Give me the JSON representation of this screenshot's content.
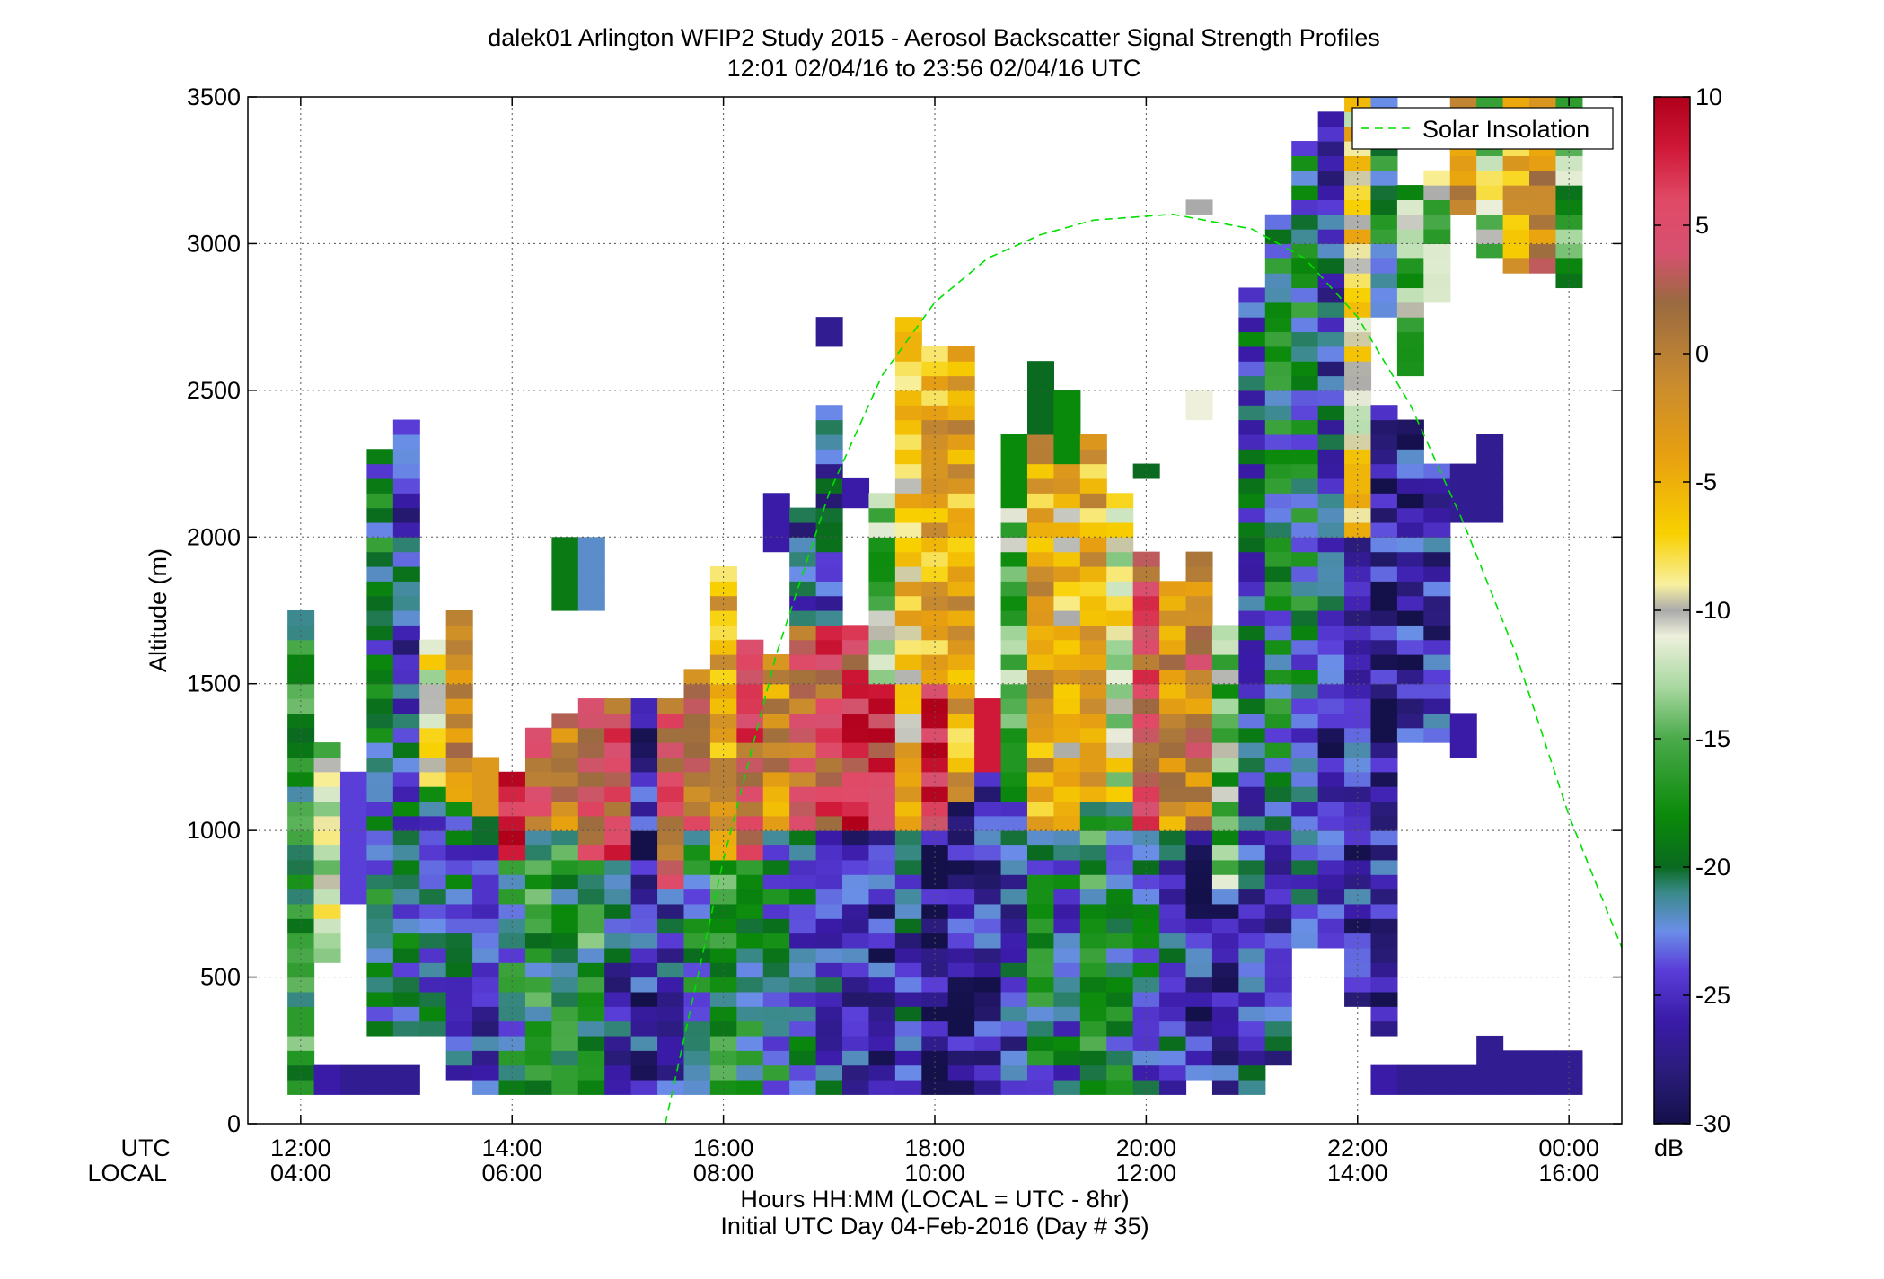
{
  "chart_data": {
    "type": "heatmap",
    "title": "dalek01 Arlington WFIP2 Study 2015 - Aerosol Backscatter Signal Strength Profiles",
    "subtitle": "12:01 02/04/16 to 23:56 02/04/16  UTC",
    "xlabel": "Hours HH:MM  (LOCAL = UTC - 8hr)",
    "xlabel2": "Initial UTC Day 04-Feb-2016 (Day # 35)",
    "ylabel": "Altitude (m)",
    "x_row_labels": [
      "UTC",
      "LOCAL"
    ],
    "xlim_hours_utc": [
      11.5,
      24.5
    ],
    "ylim": [
      0,
      3500
    ],
    "xticks": [
      {
        "value": 12,
        "utc": "12:00",
        "local": "04:00"
      },
      {
        "value": 14,
        "utc": "14:00",
        "local": "06:00"
      },
      {
        "value": 16,
        "utc": "16:00",
        "local": "08:00"
      },
      {
        "value": 18,
        "utc": "18:00",
        "local": "10:00"
      },
      {
        "value": 20,
        "utc": "20:00",
        "local": "12:00"
      },
      {
        "value": 22,
        "utc": "22:00",
        "local": "14:00"
      },
      {
        "value": 24,
        "utc": "00:00",
        "local": "16:00"
      }
    ],
    "yticks": [
      0,
      500,
      1000,
      1500,
      2000,
      2500,
      3000,
      3500
    ],
    "grid": true,
    "legend": {
      "position": "top-right",
      "entries": [
        {
          "name": "Solar Insolation",
          "style": "dashed",
          "color": "#00e000"
        }
      ]
    },
    "colorbar": {
      "unit": "dB",
      "range": [
        -30,
        10
      ],
      "ticks": [
        10,
        5,
        0,
        -5,
        -10,
        -15,
        -20,
        -25,
        -30
      ],
      "stops": [
        {
          "v": -30,
          "c": "#14104a"
        },
        {
          "v": -28,
          "c": "#2a1c7a"
        },
        {
          "v": -26,
          "c": "#3a1ba8"
        },
        {
          "v": -24,
          "c": "#5a3ed8"
        },
        {
          "v": -22.5,
          "c": "#6a8ee8"
        },
        {
          "v": -21,
          "c": "#3a8a8a"
        },
        {
          "v": -20,
          "c": "#0a6a20"
        },
        {
          "v": -18,
          "c": "#0a8a0a"
        },
        {
          "v": -15,
          "c": "#4aaa4a"
        },
        {
          "v": -13,
          "c": "#a8d8a0"
        },
        {
          "v": -11,
          "c": "#eef0dc"
        },
        {
          "v": -10,
          "c": "#aaaaaa"
        },
        {
          "v": -9,
          "c": "#f8f0a0"
        },
        {
          "v": -7,
          "c": "#f8d000"
        },
        {
          "v": -4,
          "c": "#e8a010"
        },
        {
          "v": -1,
          "c": "#c88a30"
        },
        {
          "v": 2,
          "c": "#9a6a40"
        },
        {
          "v": 4,
          "c": "#d85070"
        },
        {
          "v": 6,
          "c": "#e04a66"
        },
        {
          "v": 8,
          "c": "#d01838"
        },
        {
          "v": 10,
          "c": "#b0001a"
        }
      ]
    },
    "bin_minutes": 15,
    "bin_altitude_m": 50,
    "solar_insolation": {
      "peak_time_utc": 20.25,
      "peak_altitude_m": 3100,
      "points": [
        [
          15.45,
          0
        ],
        [
          16.0,
          900
        ],
        [
          16.5,
          1600
        ],
        [
          17.0,
          2150
        ],
        [
          17.5,
          2550
        ],
        [
          18.0,
          2800
        ],
        [
          18.5,
          2950
        ],
        [
          19.0,
          3030
        ],
        [
          19.5,
          3080
        ],
        [
          20.25,
          3100
        ],
        [
          21.0,
          3050
        ],
        [
          21.5,
          2950
        ],
        [
          22.0,
          2750
        ],
        [
          22.5,
          2450
        ],
        [
          23.0,
          2050
        ],
        [
          23.5,
          1600
        ],
        [
          24.0,
          1050
        ],
        [
          24.5,
          600
        ]
      ]
    },
    "profiles": [
      {
        "t": 12.0,
        "segs": [
          [
            100,
            1750,
            -18,
            "v"
          ]
        ]
      },
      {
        "t": 12.25,
        "segs": [
          [
            100,
            200,
            -26
          ],
          [
            550,
            1300,
            -12,
            "v"
          ]
        ]
      },
      {
        "t": 12.5,
        "segs": [
          [
            750,
            1200,
            -24
          ],
          [
            100,
            200,
            -27
          ]
        ]
      },
      {
        "t": 12.75,
        "segs": [
          [
            100,
            200,
            -27
          ],
          [
            300,
            2300,
            -20,
            "v"
          ]
        ]
      },
      {
        "t": 13.0,
        "segs": [
          [
            100,
            200,
            -27
          ],
          [
            300,
            1350,
            -22,
            "v"
          ],
          [
            1350,
            2400,
            -24,
            "v"
          ]
        ]
      },
      {
        "t": 13.25,
        "segs": [
          [
            300,
            1150,
            -22,
            "v"
          ],
          [
            1150,
            1650,
            -10,
            "v"
          ]
        ]
      },
      {
        "t": 13.5,
        "segs": [
          [
            150,
            1100,
            -22,
            "v"
          ],
          [
            1100,
            1750,
            -2,
            "v"
          ]
        ]
      },
      {
        "t": 13.75,
        "segs": [
          [
            100,
            1050,
            -24,
            "v"
          ],
          [
            1050,
            1250,
            -3
          ]
        ]
      },
      {
        "t": 14.0,
        "segs": [
          [
            100,
            900,
            -20,
            "v"
          ],
          [
            900,
            1200,
            6,
            "v"
          ]
        ]
      },
      {
        "t": 14.25,
        "segs": [
          [
            100,
            1000,
            -18,
            "v"
          ],
          [
            1000,
            1350,
            2,
            "v"
          ]
        ]
      },
      {
        "t": 14.5,
        "segs": [
          [
            100,
            1000,
            -18,
            "v"
          ],
          [
            1000,
            1400,
            0,
            "v"
          ],
          [
            1750,
            2000,
            -19
          ]
        ]
      },
      {
        "t": 14.75,
        "segs": [
          [
            100,
            900,
            -18,
            "v"
          ],
          [
            900,
            1450,
            2,
            "v"
          ],
          [
            1750,
            2000,
            -22
          ]
        ]
      },
      {
        "t": 15.0,
        "segs": [
          [
            100,
            900,
            -24,
            "v"
          ],
          [
            900,
            1450,
            4,
            "v"
          ]
        ]
      },
      {
        "t": 15.25,
        "segs": [
          [
            100,
            1450,
            -26,
            "v"
          ]
        ]
      },
      {
        "t": 15.5,
        "segs": [
          [
            100,
            800,
            -24,
            "v"
          ],
          [
            800,
            1450,
            4,
            "v"
          ]
        ]
      },
      {
        "t": 15.75,
        "segs": [
          [
            100,
            1000,
            -20,
            "v"
          ],
          [
            1000,
            1550,
            2,
            "v"
          ]
        ]
      },
      {
        "t": 16.0,
        "segs": [
          [
            100,
            900,
            -18,
            "v"
          ],
          [
            900,
            1900,
            -4,
            "v"
          ]
        ]
      },
      {
        "t": 16.25,
        "segs": [
          [
            100,
            900,
            -20,
            "v"
          ],
          [
            900,
            1650,
            4,
            "v"
          ]
        ]
      },
      {
        "t": 16.5,
        "segs": [
          [
            100,
            1000,
            -20,
            "v"
          ],
          [
            1000,
            1600,
            -2,
            "v"
          ],
          [
            1950,
            2150,
            -26
          ]
        ]
      },
      {
        "t": 16.75,
        "segs": [
          [
            100,
            1000,
            -22,
            "v"
          ],
          [
            1000,
            1700,
            2,
            "v"
          ],
          [
            1700,
            2100,
            -24,
            "v"
          ]
        ]
      },
      {
        "t": 17.0,
        "segs": [
          [
            100,
            1000,
            -24,
            "v"
          ],
          [
            1000,
            1700,
            4,
            "v"
          ],
          [
            1700,
            2450,
            -24,
            "v"
          ],
          [
            2650,
            2750,
            -27
          ]
        ]
      },
      {
        "t": 17.25,
        "segs": [
          [
            100,
            1000,
            -26,
            "v"
          ],
          [
            1000,
            1700,
            6,
            "v"
          ],
          [
            2100,
            2200,
            -26
          ]
        ]
      },
      {
        "t": 17.5,
        "segs": [
          [
            100,
            1000,
            -26,
            "v"
          ],
          [
            1000,
            1500,
            6,
            "v"
          ],
          [
            1500,
            2150,
            -14,
            "v"
          ]
        ]
      },
      {
        "t": 17.75,
        "segs": [
          [
            100,
            1000,
            -24,
            "v"
          ],
          [
            1000,
            2750,
            -6,
            "v"
          ]
        ]
      },
      {
        "t": 18.0,
        "segs": [
          [
            100,
            1000,
            -28,
            "v"
          ],
          [
            1000,
            1500,
            8,
            "v"
          ],
          [
            1500,
            2650,
            -4,
            "v"
          ]
        ]
      },
      {
        "t": 18.25,
        "segs": [
          [
            100,
            1100,
            -26,
            "v"
          ],
          [
            1100,
            1700,
            -4,
            "v"
          ],
          [
            1700,
            2650,
            -4,
            "v"
          ]
        ]
      },
      {
        "t": 18.5,
        "segs": [
          [
            100,
            1200,
            -26,
            "v"
          ],
          [
            1200,
            1450,
            8
          ]
        ]
      },
      {
        "t": 18.75,
        "segs": [
          [
            100,
            1100,
            -24,
            "v"
          ],
          [
            1100,
            2100,
            -14,
            "v"
          ],
          [
            2100,
            2350,
            -18
          ]
        ]
      },
      {
        "t": 19.0,
        "segs": [
          [
            100,
            1000,
            -20,
            "v"
          ],
          [
            1000,
            2350,
            -4,
            "v"
          ],
          [
            2350,
            2600,
            -20
          ]
        ]
      },
      {
        "t": 19.25,
        "segs": [
          [
            100,
            1000,
            -22,
            "v"
          ],
          [
            1000,
            2250,
            -6,
            "v"
          ],
          [
            2250,
            2500,
            -18
          ]
        ]
      },
      {
        "t": 19.5,
        "segs": [
          [
            100,
            1100,
            -18,
            "v"
          ],
          [
            1100,
            2350,
            -4,
            "v"
          ]
        ]
      },
      {
        "t": 19.75,
        "segs": [
          [
            100,
            1100,
            -20,
            "v"
          ],
          [
            1100,
            2150,
            -10,
            "v"
          ]
        ]
      },
      {
        "t": 20.0,
        "segs": [
          [
            100,
            1000,
            -22,
            "v"
          ],
          [
            1000,
            1950,
            4,
            "v"
          ],
          [
            2200,
            2250,
            -20
          ]
        ]
      },
      {
        "t": 20.25,
        "segs": [
          [
            100,
            1000,
            -24,
            "v"
          ],
          [
            1000,
            1850,
            -2,
            "v"
          ]
        ]
      },
      {
        "t": 20.5,
        "segs": [
          [
            150,
            1000,
            -26,
            "v"
          ],
          [
            1000,
            1950,
            0,
            "v"
          ],
          [
            2400,
            2500,
            -11
          ],
          [
            3100,
            3150,
            -10
          ]
        ]
      },
      {
        "t": 20.75,
        "segs": [
          [
            100,
            800,
            -26,
            "v"
          ],
          [
            800,
            1700,
            -14,
            "v"
          ]
        ]
      },
      {
        "t": 21.0,
        "segs": [
          [
            100,
            1300,
            -24,
            "v"
          ],
          [
            1300,
            2850,
            -22,
            "v"
          ]
        ]
      },
      {
        "t": 21.25,
        "segs": [
          [
            200,
            1000,
            -24,
            "v"
          ],
          [
            1000,
            3100,
            -20,
            "v"
          ]
        ]
      },
      {
        "t": 21.5,
        "segs": [
          [
            600,
            1600,
            -22,
            "v"
          ],
          [
            1600,
            3350,
            -20,
            "v"
          ]
        ]
      },
      {
        "t": 21.75,
        "segs": [
          [
            600,
            1500,
            -26,
            "v"
          ],
          [
            1500,
            3450,
            -24,
            "v"
          ]
        ]
      },
      {
        "t": 22.0,
        "segs": [
          [
            400,
            1250,
            -26,
            "v"
          ],
          [
            1250,
            2000,
            -26,
            "v"
          ],
          [
            2000,
            3500,
            -8,
            "v"
          ]
        ]
      },
      {
        "t": 22.25,
        "segs": [
          [
            100,
            200,
            -26
          ],
          [
            300,
            900,
            -26,
            "v"
          ],
          [
            900,
            2450,
            -27,
            "v"
          ],
          [
            2750,
            3500,
            -19,
            "v"
          ]
        ]
      },
      {
        "t": 22.5,
        "segs": [
          [
            100,
            200,
            -27
          ],
          [
            1300,
            2400,
            -26,
            "v"
          ],
          [
            2550,
            3200,
            -14,
            "v"
          ]
        ]
      },
      {
        "t": 22.75,
        "segs": [
          [
            100,
            200,
            -27
          ],
          [
            1300,
            2250,
            -26,
            "v"
          ],
          [
            2800,
            3250,
            -13,
            "v"
          ]
        ]
      },
      {
        "t": 23.0,
        "segs": [
          [
            100,
            200,
            -27
          ],
          [
            1250,
            1400,
            -26
          ],
          [
            2050,
            2250,
            -27
          ],
          [
            3100,
            3500,
            -3,
            "v"
          ]
        ]
      },
      {
        "t": 23.25,
        "segs": [
          [
            100,
            300,
            -27
          ],
          [
            2050,
            2350,
            -27
          ],
          [
            2950,
            3500,
            -12,
            "v"
          ]
        ]
      },
      {
        "t": 23.5,
        "segs": [
          [
            100,
            250,
            -27
          ],
          [
            2900,
            3500,
            -4,
            "v"
          ]
        ]
      },
      {
        "t": 23.75,
        "segs": [
          [
            100,
            250,
            -27
          ],
          [
            2900,
            3500,
            -1,
            "v"
          ]
        ]
      },
      {
        "t": 24.0,
        "segs": [
          [
            100,
            250,
            -27
          ],
          [
            2850,
            3500,
            -15,
            "v"
          ]
        ]
      }
    ]
  }
}
